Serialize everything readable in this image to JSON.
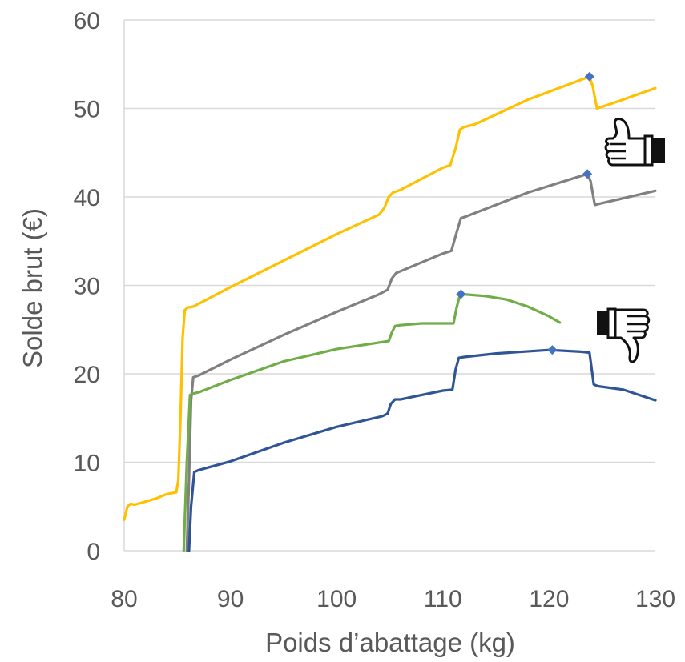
{
  "chart_data": {
    "type": "line",
    "xlabel": "Poids d’abattage (kg)",
    "ylabel": "Solde brut (€)",
    "xlim": [
      80,
      130
    ],
    "ylim": [
      0,
      60
    ],
    "x_ticks": [
      "80",
      "90",
      "100",
      "110",
      "120",
      "130"
    ],
    "y_ticks": [
      "0",
      "10",
      "20",
      "30",
      "40",
      "50",
      "60"
    ],
    "grid": "horizontal",
    "legend": "none",
    "series": [
      {
        "color": "#FFC000",
        "points": [
          [
            80,
            3.5
          ],
          [
            80.3,
            5.0
          ],
          [
            80.6,
            5.3
          ],
          [
            81,
            5.2
          ],
          [
            83,
            5.9
          ],
          [
            84,
            6.4
          ],
          [
            84.9,
            6.6
          ],
          [
            85.1,
            8
          ],
          [
            85.3,
            15
          ],
          [
            85.5,
            24
          ],
          [
            85.7,
            27.2
          ],
          [
            86,
            27.5
          ],
          [
            86.5,
            27.6
          ],
          [
            90,
            29.8
          ],
          [
            95,
            32.8
          ],
          [
            100,
            35.8
          ],
          [
            104,
            38.0
          ],
          [
            104.5,
            38.8
          ],
          [
            104.9,
            40.0
          ],
          [
            105.3,
            40.5
          ],
          [
            106,
            40.8
          ],
          [
            110,
            43.3
          ],
          [
            110.7,
            43.6
          ],
          [
            111.2,
            45.5
          ],
          [
            111.6,
            47.6
          ],
          [
            112,
            47.9
          ],
          [
            113,
            48.2
          ],
          [
            118,
            51.0
          ],
          [
            123.8,
            53.6
          ],
          [
            124.1,
            52.5
          ],
          [
            124.5,
            50.0
          ],
          [
            125,
            50.2
          ],
          [
            126,
            50.6
          ],
          [
            130,
            52.3
          ]
        ],
        "marker": [
          123.8,
          53.6
        ]
      },
      {
        "color": "#808080",
        "points": [
          [
            85.9,
            0
          ],
          [
            86.1,
            8
          ],
          [
            86.3,
            17
          ],
          [
            86.5,
            19.6
          ],
          [
            87,
            19.8
          ],
          [
            90,
            21.6
          ],
          [
            95,
            24.4
          ],
          [
            100,
            27.0
          ],
          [
            104,
            29.0
          ],
          [
            104.8,
            29.5
          ],
          [
            105.2,
            30.8
          ],
          [
            105.6,
            31.4
          ],
          [
            106,
            31.6
          ],
          [
            110,
            33.6
          ],
          [
            110.8,
            33.9
          ],
          [
            111.3,
            36.0
          ],
          [
            111.7,
            37.6
          ],
          [
            112.2,
            37.8
          ],
          [
            118,
            40.5
          ],
          [
            123.6,
            42.6
          ],
          [
            123.9,
            41.8
          ],
          [
            124.3,
            39.1
          ],
          [
            125,
            39.3
          ],
          [
            130,
            40.7
          ]
        ],
        "marker": [
          123.6,
          42.6
        ]
      },
      {
        "color": "#70AD47",
        "points": [
          [
            85.6,
            0
          ],
          [
            85.9,
            10
          ],
          [
            86.2,
            17.6
          ],
          [
            86.6,
            17.8
          ],
          [
            87,
            17.9
          ],
          [
            90,
            19.3
          ],
          [
            95,
            21.4
          ],
          [
            100,
            22.8
          ],
          [
            104.9,
            23.7
          ],
          [
            105.2,
            24.7
          ],
          [
            105.5,
            25.4
          ],
          [
            106,
            25.5
          ],
          [
            108,
            25.7
          ],
          [
            111,
            25.7
          ],
          [
            111.3,
            27.5
          ],
          [
            111.6,
            28.9
          ],
          [
            112,
            29.0
          ],
          [
            114,
            28.8
          ],
          [
            116,
            28.4
          ],
          [
            118,
            27.6
          ],
          [
            120,
            26.5
          ],
          [
            121,
            25.8
          ]
        ],
        "marker": [
          111.7,
          29.0
        ]
      },
      {
        "color": "#2F5597",
        "points": [
          [
            86.1,
            0
          ],
          [
            86.3,
            5
          ],
          [
            86.6,
            8.9
          ],
          [
            87,
            9.1
          ],
          [
            90,
            10.1
          ],
          [
            95,
            12.2
          ],
          [
            100,
            14.0
          ],
          [
            104.3,
            15.2
          ],
          [
            104.8,
            15.5
          ],
          [
            105.1,
            16.6
          ],
          [
            105.5,
            17.1
          ],
          [
            106,
            17.1
          ],
          [
            110,
            18.1
          ],
          [
            110.9,
            18.2
          ],
          [
            111.2,
            20.5
          ],
          [
            111.5,
            21.8
          ],
          [
            112,
            21.9
          ],
          [
            115,
            22.3
          ],
          [
            120,
            22.7
          ],
          [
            123,
            22.5
          ],
          [
            123.8,
            22.4
          ],
          [
            124.2,
            18.8
          ],
          [
            124.6,
            18.6
          ],
          [
            127,
            18.2
          ],
          [
            130,
            17.0
          ]
        ],
        "marker": [
          120.3,
          22.7
        ]
      }
    ],
    "marker_color": "#4472C4",
    "annotations": [
      {
        "type": "thumbs-up-icon",
        "near_series": 1
      },
      {
        "type": "thumbs-down-icon",
        "near_series": 2
      }
    ]
  }
}
